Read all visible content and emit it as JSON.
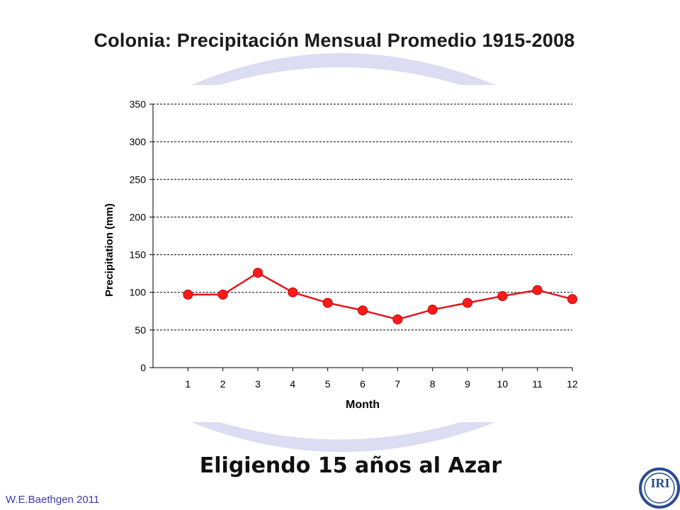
{
  "slide": {
    "title": "Colonia: Precipitación Mensual Promedio 1915-2008",
    "subtitle": "Eligiendo 15 años al Azar",
    "credit": "W.E.Baethgen 2011",
    "logo_text": "IRI"
  },
  "colors": {
    "series": "#e8141c",
    "marker": "#ff1a1a",
    "swoosh": "#dcdcf2",
    "credit": "#3b3bb0",
    "logo": "#2a4d8f"
  },
  "chart_data": {
    "type": "line",
    "title": "",
    "xlabel": "Month",
    "ylabel": "Precipitation (mm)",
    "categories": [
      "1",
      "2",
      "3",
      "4",
      "5",
      "6",
      "7",
      "8",
      "9",
      "10",
      "11",
      "12"
    ],
    "values": [
      97,
      97,
      126,
      100,
      86,
      76,
      64,
      77,
      86,
      95,
      103,
      91
    ],
    "ylim": [
      0,
      350
    ],
    "yticks": [
      0,
      50,
      100,
      150,
      200,
      250,
      300,
      350
    ],
    "grid": "horizontal dashed",
    "legend": "none"
  }
}
